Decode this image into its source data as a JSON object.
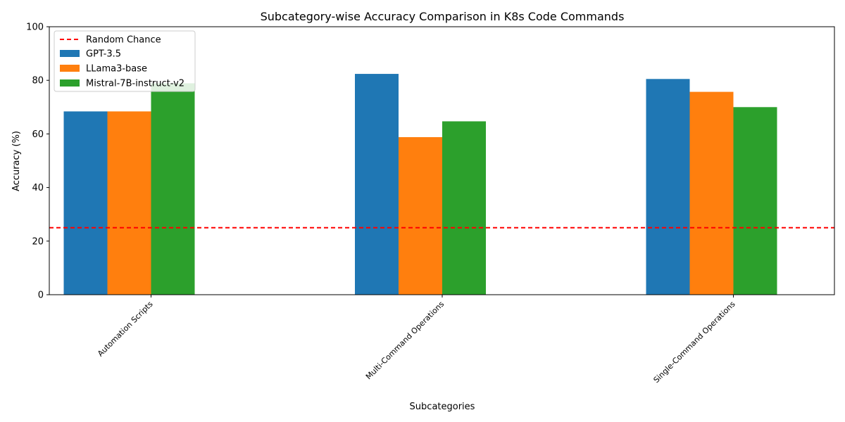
{
  "chart_data": {
    "type": "bar",
    "title": "Subcategory-wise Accuracy Comparison in K8s Code Commands",
    "xlabel": "Subcategories",
    "ylabel": "Accuracy (%)",
    "ylim": [
      0,
      100
    ],
    "yticks": [
      0,
      20,
      40,
      60,
      80,
      100
    ],
    "categories": [
      "Automation Scripts",
      "Multi-Command Operations",
      "Single-Command Operations"
    ],
    "series": [
      {
        "name": "GPT-3.5",
        "color": "#1f77b4",
        "values": [
          68.4,
          82.4,
          80.5
        ]
      },
      {
        "name": "LLama3-base",
        "color": "#ff7f0e",
        "values": [
          68.4,
          58.8,
          75.7
        ]
      },
      {
        "name": "Mistral-7B-instruct-v2",
        "color": "#2ca02c",
        "values": [
          78.9,
          64.7,
          70.0
        ]
      }
    ],
    "reference_line": {
      "name": "Random Chance",
      "value": 25,
      "color": "#ff0000",
      "style": "dashed"
    },
    "legend_position": "top-left",
    "grid": false
  }
}
